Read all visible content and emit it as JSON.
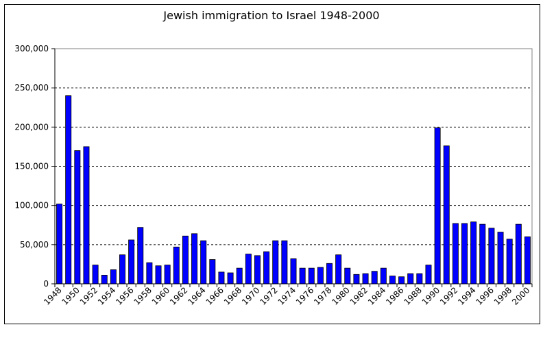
{
  "chart_data": {
    "type": "bar",
    "title": "Jewish immigration to Israel 1948-2000",
    "xlabel": "",
    "ylabel": "",
    "ylim": [
      0,
      300000
    ],
    "yticks": [
      0,
      50000,
      100000,
      150000,
      200000,
      250000,
      300000
    ],
    "ytick_labels": [
      "0",
      "50,000",
      "100,000",
      "150,000",
      "200,000",
      "250,000",
      "300,000"
    ],
    "grid": "horizontal-dashed",
    "legend": "none",
    "bar_color": "#0000ff",
    "categories": [
      "1948",
      "1949",
      "1950",
      "1951",
      "1952",
      "1953",
      "1954",
      "1955",
      "1956",
      "1957",
      "1958",
      "1959",
      "1960",
      "1961",
      "1962",
      "1963",
      "1964",
      "1965",
      "1966",
      "1967",
      "1968",
      "1969",
      "1970",
      "1971",
      "1972",
      "1973",
      "1974",
      "1975",
      "1976",
      "1977",
      "1978",
      "1979",
      "1980",
      "1981",
      "1982",
      "1983",
      "1984",
      "1985",
      "1986",
      "1987",
      "1988",
      "1989",
      "1990",
      "1991",
      "1992",
      "1993",
      "1994",
      "1995",
      "1996",
      "1997",
      "1998",
      "1999",
      "2000"
    ],
    "xtick_labels": [
      "1948",
      "1950",
      "1952",
      "1954",
      "1956",
      "1958",
      "1960",
      "1962",
      "1964",
      "1966",
      "1968",
      "1970",
      "1972",
      "1974",
      "1976",
      "1978",
      "1980",
      "1982",
      "1984",
      "1986",
      "1988",
      "1990",
      "1992",
      "1994",
      "1996",
      "1998",
      "2000"
    ],
    "values": [
      101800,
      240000,
      170000,
      175000,
      24000,
      11000,
      18000,
      37000,
      56000,
      72000,
      27000,
      23000,
      24000,
      47000,
      61000,
      64000,
      55000,
      31000,
      15000,
      14000,
      20000,
      38000,
      36000,
      41000,
      55000,
      55000,
      32000,
      20000,
      20000,
      21000,
      26000,
      37000,
      20000,
      12000,
      13000,
      16000,
      20000,
      10000,
      9000,
      13000,
      13000,
      24000,
      199000,
      176000,
      77000,
      77000,
      79000,
      76000,
      71000,
      66000,
      57000,
      76000,
      60000
    ]
  }
}
